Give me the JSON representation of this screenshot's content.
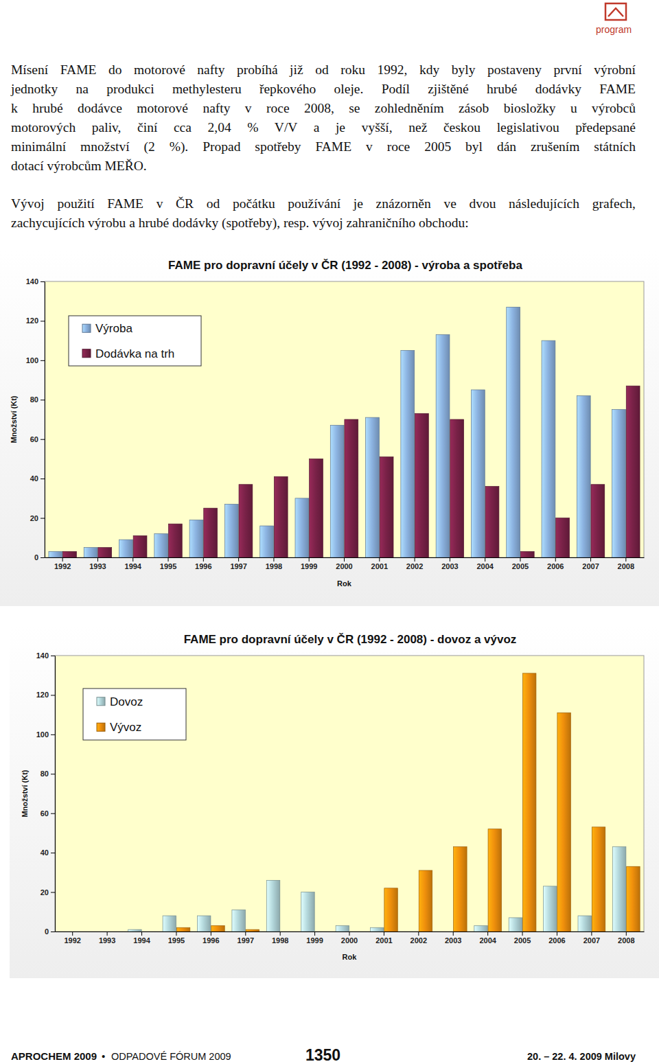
{
  "header": {
    "label": "program"
  },
  "paragraphs": [
    {
      "lines": [
        "Mísení FAME do motorové nafty probíhá již od roku 1992, kdy byly postaveny první výrobní",
        "jednotky na produkci methylesteru řepkového oleje. Podíl zjištěné hrubé dodávky FAME",
        "k hrubé dodávce motorové nafty v roce 2008, se zohledněním zásob biosložky u výrobců",
        "motorových paliv, činí cca 2,04 % V/V a je vyšší, než českou legislativou předepsané",
        "minimální množství (2 %). Propad spotřeby FAME v roce 2005 byl dán zrušením státních",
        "dotací výrobcům MEŘO."
      ]
    },
    {
      "lines": [
        "Vývoj použití FAME v ČR od počátku používání je znázorněn ve dvou následujících grafech,",
        "zachycujících výrobu a hrubé dodávky (spotřeby), resp. vývoj zahraničního obchodu:"
      ]
    }
  ],
  "chart_data": [
    {
      "type": "bar",
      "title": "FAME pro dopravní účely v ČR (1992 - 2008) - výroba a spotřeba",
      "x_label": "Rok",
      "y_label": "Množství (Kt)",
      "categories": [
        "1992",
        "1993",
        "1994",
        "1995",
        "1996",
        "1997",
        "1998",
        "1999",
        "2000",
        "2001",
        "2002",
        "2003",
        "2004",
        "2005",
        "2006",
        "2007",
        "2008"
      ],
      "series": [
        {
          "name": "Výroba",
          "color": "#8db4e2",
          "values": [
            3,
            5,
            9,
            12,
            19,
            27,
            16,
            30,
            67,
            71,
            105,
            113,
            85,
            127,
            110,
            82,
            75
          ]
        },
        {
          "name": "Dodávka na trh",
          "color": "#7a2248",
          "values": [
            3,
            5,
            11,
            17,
            25,
            37,
            41,
            50,
            70,
            51,
            73,
            70,
            36,
            3,
            20,
            37,
            87
          ]
        }
      ],
      "ylim": [
        0,
        140
      ],
      "yticks": [
        0,
        20,
        40,
        60,
        80,
        100,
        120,
        140
      ],
      "grid": false,
      "legend": "upper left"
    },
    {
      "type": "bar",
      "title": "FAME pro dopravní účely v ČR (1992 - 2008) - dovoz a vývoz",
      "x_label": "Rok",
      "y_label": "Množství (Kt)",
      "categories": [
        "1992",
        "1993",
        "1994",
        "1995",
        "1996",
        "1997",
        "1998",
        "1999",
        "2000",
        "2001",
        "2002",
        "2003",
        "2004",
        "2005",
        "2006",
        "2007",
        "2008"
      ],
      "series": [
        {
          "name": "Dovoz",
          "color": "#b4d8dc",
          "values": [
            0,
            0,
            1,
            8,
            8,
            11,
            26,
            20,
            3,
            2,
            0,
            0,
            3,
            7,
            23,
            8,
            43
          ]
        },
        {
          "name": "Vývoz",
          "color": "#f0900c",
          "values": [
            0,
            0,
            0,
            2,
            3,
            1,
            0,
            0,
            0,
            22,
            31,
            43,
            52,
            131,
            111,
            53,
            33
          ]
        }
      ],
      "ylim": [
        0,
        140
      ],
      "yticks": [
        0,
        20,
        40,
        60,
        80,
        100,
        120,
        140
      ],
      "grid": false,
      "legend": "upper left"
    }
  ],
  "footer": {
    "left": "APROCHEM 2009",
    "separator": "•",
    "middle": "ODPADOVÉ FÓRUM 2009",
    "page": "1350",
    "right": "20. – 22. 4. 2009 Milovy"
  }
}
